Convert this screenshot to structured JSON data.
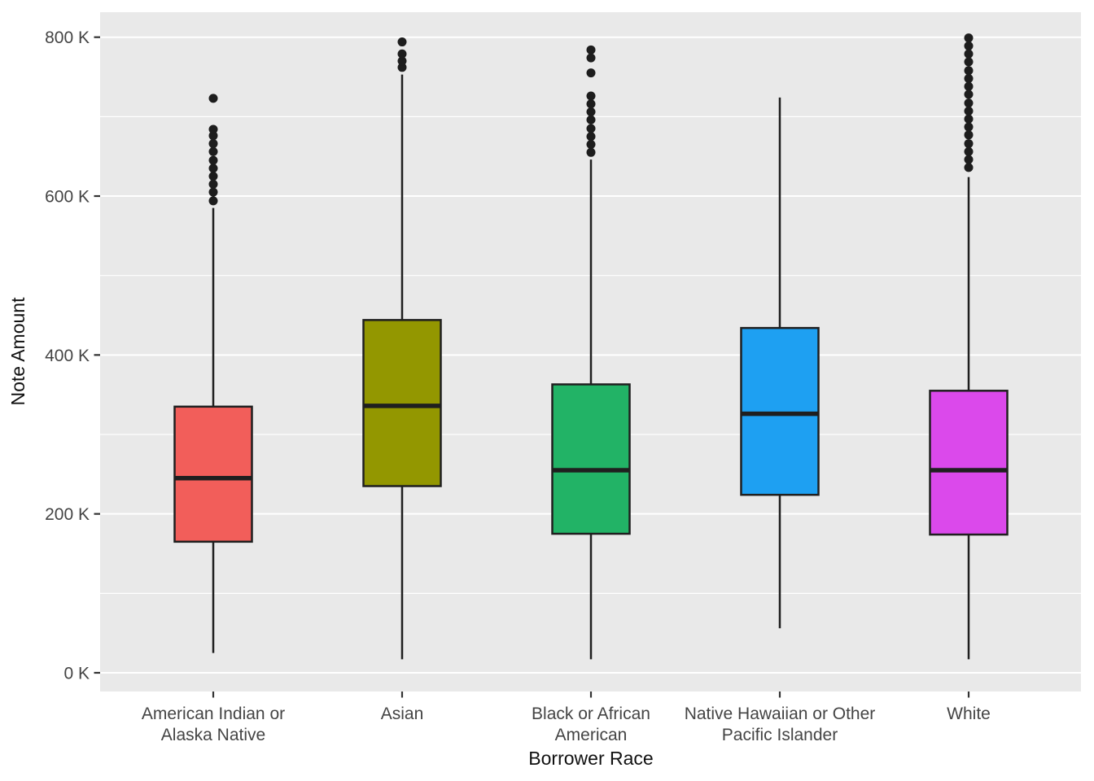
{
  "chart_data": {
    "type": "boxplot",
    "title": "",
    "xlabel": "Borrower Race",
    "ylabel": "Note Amount",
    "y_unit": "thousands (K)",
    "ylim": [
      0,
      800
    ],
    "grid": true,
    "legend": "none",
    "panel_background": "#E9E9E9",
    "gridline_color": "#FFFFFF",
    "outlier_color": "#1D1D1D",
    "stroke_color": "#1F1F1F",
    "y_ticks": [
      {
        "value": 0,
        "label": "0 K"
      },
      {
        "value": 200,
        "label": "200 K"
      },
      {
        "value": 400,
        "label": "400 K"
      },
      {
        "value": 600,
        "label": "600 K"
      },
      {
        "value": 800,
        "label": "800 K"
      }
    ],
    "y_minor_ticks": [
      100,
      300,
      500,
      700
    ],
    "categories": [
      "American Indian or Alaska Native",
      "Asian",
      "Black or African American",
      "Native Hawaiian or Other Pacific Islander",
      "White"
    ],
    "series": [
      {
        "name": "American Indian or Alaska Native",
        "label_lines": [
          "American Indian or",
          "Alaska Native"
        ],
        "fill": "#F25E5A",
        "whisker_low": 25,
        "q1": 165,
        "median": 245,
        "q3": 335,
        "whisker_high": 585,
        "outliers": [
          594,
          605,
          615,
          625,
          635,
          645,
          656,
          666,
          676,
          684,
          723
        ]
      },
      {
        "name": "Asian",
        "label_lines": [
          "Asian"
        ],
        "fill": "#939700",
        "whisker_low": 17,
        "q1": 235,
        "median": 336,
        "q3": 444,
        "whisker_high": 753,
        "outliers": [
          762,
          770,
          779,
          794
        ]
      },
      {
        "name": "Black or African American",
        "label_lines": [
          "Black or African",
          "American"
        ],
        "fill": "#22B366",
        "whisker_low": 17,
        "q1": 175,
        "median": 255,
        "q3": 363,
        "whisker_high": 646,
        "outliers": [
          655,
          665,
          675,
          685,
          696,
          706,
          716,
          726,
          755,
          774,
          784
        ]
      },
      {
        "name": "Native Hawaiian or Other Pacific Islander",
        "label_lines": [
          "Native Hawaiian or Other",
          "Pacific Islander"
        ],
        "fill": "#1EA0F2",
        "whisker_low": 56,
        "q1": 224,
        "median": 326,
        "q3": 434,
        "whisker_high": 724,
        "outliers": []
      },
      {
        "name": "White",
        "label_lines": [
          "White"
        ],
        "fill": "#DB49EB",
        "whisker_low": 17,
        "q1": 174,
        "median": 255,
        "q3": 355,
        "whisker_high": 624,
        "outliers": [
          636,
          646,
          656,
          666,
          677,
          687,
          697,
          707,
          717,
          728,
          738,
          748,
          758,
          769,
          779,
          789,
          799
        ]
      }
    ]
  }
}
